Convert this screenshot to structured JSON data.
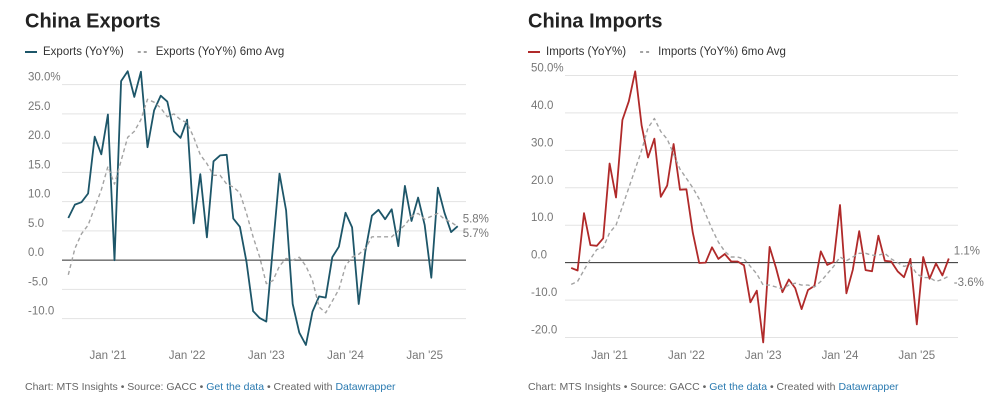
{
  "chart_data": [
    {
      "type": "line",
      "title": "China Exports",
      "categories": [
        "2020-07",
        "2020-08",
        "2020-09",
        "2020-10",
        "2020-11",
        "2020-12",
        "2021-01",
        "2021-02",
        "2021-03",
        "2021-04",
        "2021-05",
        "2021-06",
        "2021-07",
        "2021-08",
        "2021-09",
        "2021-10",
        "2021-11",
        "2021-12",
        "2022-01",
        "2022-02",
        "2022-03",
        "2022-04",
        "2022-05",
        "2022-06",
        "2022-07",
        "2022-08",
        "2022-09",
        "2022-10",
        "2022-11",
        "2022-12",
        "2023-01",
        "2023-02",
        "2023-03",
        "2023-04",
        "2023-05",
        "2023-06",
        "2023-07",
        "2023-08",
        "2023-09",
        "2023-10",
        "2023-11",
        "2023-12",
        "2024-01",
        "2024-02",
        "2024-03",
        "2024-04",
        "2024-05",
        "2024-06",
        "2024-07",
        "2024-08",
        "2024-09",
        "2024-10",
        "2024-11",
        "2024-12",
        "2025-01",
        "2025-02",
        "2025-03",
        "2025-04",
        "2025-05",
        "2025-06"
      ],
      "series": [
        {
          "name": "Exports (YoY%)",
          "color": "#1d5669",
          "style": "solid",
          "values": [
            7.2,
            9.5,
            9.9,
            11.4,
            21.1,
            18.1,
            24.9,
            0.0,
            30.6,
            32.3,
            27.9,
            32.2,
            19.3,
            25.6,
            28.1,
            27.1,
            22.0,
            20.9,
            24.0,
            6.3,
            14.7,
            3.9,
            16.9,
            17.9,
            18.0,
            7.1,
            5.7,
            -0.3,
            -8.7,
            -9.9,
            -10.5,
            2.2,
            14.8,
            8.5,
            -7.5,
            -12.4,
            -14.5,
            -8.8,
            -6.2,
            -6.4,
            0.5,
            2.3,
            8.1,
            5.6,
            -7.5,
            1.5,
            7.6,
            8.6,
            7.0,
            8.7,
            2.4,
            12.7,
            6.7,
            10.7,
            6.0,
            -3.0,
            12.4,
            8.1,
            4.8,
            5.8
          ],
          "value_labels": [
            null,
            null,
            null,
            null,
            null,
            null,
            null,
            null,
            null,
            null,
            null,
            null,
            null,
            null,
            null,
            null,
            null,
            null,
            null,
            null,
            null,
            null,
            null,
            null,
            null,
            null,
            null,
            null,
            null,
            null,
            null,
            null,
            null,
            null,
            null,
            null,
            null,
            null,
            null,
            null,
            null,
            null,
            null,
            null,
            null,
            null,
            null,
            null,
            null,
            null,
            null,
            null,
            null,
            null,
            null,
            null,
            null,
            null,
            null,
            "5.8%"
          ]
        },
        {
          "name": "Exports (YoY%) 6mo Avg",
          "color": "#a3a3a3",
          "style": "dashed",
          "values": [
            -2.5,
            2,
            4.5,
            6,
            9,
            12,
            16,
            13,
            17,
            21,
            22,
            24,
            27.5,
            27,
            26,
            24.5,
            25,
            24,
            23.5,
            21,
            18,
            16.5,
            14.5,
            14.5,
            13,
            12.5,
            11.5,
            8,
            4,
            0.5,
            -4,
            -3.5,
            -1,
            0.3,
            0,
            0.5,
            -1,
            -3.5,
            -8,
            -9,
            -7,
            -5,
            -1,
            0.5,
            1,
            2,
            4,
            4,
            4,
            4,
            5,
            6,
            7.5,
            8,
            7,
            7.5,
            8,
            7,
            6.5,
            5.7
          ],
          "value_labels": [
            null,
            null,
            null,
            null,
            null,
            null,
            null,
            null,
            null,
            null,
            null,
            null,
            null,
            null,
            null,
            null,
            null,
            null,
            null,
            null,
            null,
            null,
            null,
            null,
            null,
            null,
            null,
            null,
            null,
            null,
            null,
            null,
            null,
            null,
            null,
            null,
            null,
            null,
            null,
            null,
            null,
            null,
            null,
            null,
            null,
            null,
            null,
            null,
            null,
            null,
            null,
            null,
            null,
            null,
            null,
            null,
            null,
            null,
            null,
            "5.7%"
          ]
        }
      ],
      "xticks": [
        {
          "value": "2021-01",
          "label": "Jan '21"
        },
        {
          "value": "2022-01",
          "label": "Jan '22"
        },
        {
          "value": "2023-01",
          "label": "Jan '23"
        },
        {
          "value": "2024-01",
          "label": "Jan '24"
        },
        {
          "value": "2025-01",
          "label": "Jan '25"
        }
      ],
      "ylim": [
        -14.5,
        32.5
      ],
      "yticks": [
        {
          "value": -10,
          "label": "-10.0"
        },
        {
          "value": -5,
          "label": "-5.0"
        },
        {
          "value": 0,
          "label": "0.0"
        },
        {
          "value": 5,
          "label": "5.0"
        },
        {
          "value": 10,
          "label": "10.0"
        },
        {
          "value": 15,
          "label": "15.0"
        },
        {
          "value": 20,
          "label": "20.0"
        },
        {
          "value": 25,
          "label": "25.0"
        },
        {
          "value": 30,
          "label": "30.0%"
        }
      ],
      "grid": true,
      "source": "Chart: MTS Insights • Source: GACC •",
      "data_link": "Get the data",
      "credit": "• Created with",
      "credit_link": "Datawrapper"
    },
    {
      "type": "line",
      "title": "China Imports",
      "categories": [
        "2020-07",
        "2020-08",
        "2020-09",
        "2020-10",
        "2020-11",
        "2020-12",
        "2021-01",
        "2021-02",
        "2021-03",
        "2021-04",
        "2021-05",
        "2021-06",
        "2021-07",
        "2021-08",
        "2021-09",
        "2021-10",
        "2021-11",
        "2021-12",
        "2022-01",
        "2022-02",
        "2022-03",
        "2022-04",
        "2022-05",
        "2022-06",
        "2022-07",
        "2022-08",
        "2022-09",
        "2022-10",
        "2022-11",
        "2022-12",
        "2023-01",
        "2023-02",
        "2023-03",
        "2023-04",
        "2023-05",
        "2023-06",
        "2023-07",
        "2023-08",
        "2023-09",
        "2023-10",
        "2023-11",
        "2023-12",
        "2024-01",
        "2024-02",
        "2024-03",
        "2024-04",
        "2024-05",
        "2024-06",
        "2024-07",
        "2024-08",
        "2024-09",
        "2024-10",
        "2024-11",
        "2024-12",
        "2025-01",
        "2025-02",
        "2025-03",
        "2025-04",
        "2025-05",
        "2025-06"
      ],
      "series": [
        {
          "name": "Imports (YoY%)",
          "color": "#b02a2a",
          "style": "solid",
          "values": [
            -1.4,
            -2.1,
            13.2,
            4.7,
            4.5,
            6.5,
            26.5,
            17.4,
            38.1,
            43.1,
            51.1,
            36.7,
            28.1,
            33.1,
            17.6,
            20.6,
            31.7,
            19.5,
            19.6,
            8,
            -0.1,
            0.0,
            4.1,
            1.0,
            2.3,
            0.3,
            0.3,
            -0.7,
            -10.6,
            -7.5,
            -21.3,
            4.2,
            -1.4,
            -7.9,
            -4.5,
            -6.8,
            -12.4,
            -7.3,
            -6.2,
            3.0,
            -0.6,
            0.2,
            15.4,
            -8.2,
            -1.9,
            8.4,
            -2.0,
            -2.3,
            7.2,
            0.5,
            0.3,
            -2.3,
            -3.9,
            1.0,
            -16.5,
            1.5,
            -4.3,
            -0.2,
            -3.4,
            1.1
          ],
          "value_labels": [
            null,
            null,
            null,
            null,
            null,
            null,
            null,
            null,
            null,
            null,
            null,
            null,
            null,
            null,
            null,
            null,
            null,
            null,
            null,
            null,
            null,
            null,
            null,
            null,
            null,
            null,
            null,
            null,
            null,
            null,
            null,
            null,
            null,
            null,
            null,
            null,
            null,
            null,
            null,
            null,
            null,
            null,
            null,
            null,
            null,
            null,
            null,
            null,
            null,
            null,
            null,
            null,
            null,
            null,
            null,
            null,
            null,
            null,
            null,
            "1.1%"
          ]
        },
        {
          "name": "Imports (YoY%) 6mo Avg",
          "color": "#a3a3a3",
          "style": "dashed",
          "values": [
            -5.8,
            -5,
            -2,
            1,
            3.5,
            4,
            8,
            10,
            15,
            20,
            25,
            30,
            36,
            38.5,
            35,
            33,
            29,
            25,
            22.5,
            20,
            17,
            13,
            9,
            5.5,
            3,
            1.5,
            1.5,
            1,
            -1,
            -3,
            -6,
            -6,
            -6.5,
            -7,
            -6,
            -5.5,
            -6,
            -6,
            -6.5,
            -5,
            -3,
            -1,
            1.5,
            0.5,
            1.5,
            2.5,
            2.5,
            2,
            2,
            2.5,
            1,
            0,
            -1,
            -0.5,
            -3,
            -4,
            -4,
            -5,
            -4.5,
            -3.6
          ],
          "value_labels": [
            null,
            null,
            null,
            null,
            null,
            null,
            null,
            null,
            null,
            null,
            null,
            null,
            null,
            null,
            null,
            null,
            null,
            null,
            null,
            null,
            null,
            null,
            null,
            null,
            null,
            null,
            null,
            null,
            null,
            null,
            null,
            null,
            null,
            null,
            null,
            null,
            null,
            null,
            null,
            null,
            null,
            null,
            null,
            null,
            null,
            null,
            null,
            null,
            null,
            null,
            null,
            null,
            null,
            null,
            null,
            null,
            null,
            null,
            null,
            "-3.6%"
          ]
        }
      ],
      "xticks": [
        {
          "value": "2021-01",
          "label": "Jan '21"
        },
        {
          "value": "2022-01",
          "label": "Jan '22"
        },
        {
          "value": "2023-01",
          "label": "Jan '23"
        },
        {
          "value": "2024-01",
          "label": "Jan '24"
        },
        {
          "value": "2025-01",
          "label": "Jan '25"
        }
      ],
      "ylim": [
        -22,
        52
      ],
      "yticks": [
        {
          "value": -20,
          "label": "-20.0"
        },
        {
          "value": -10,
          "label": "-10.0"
        },
        {
          "value": 0,
          "label": "0.0"
        },
        {
          "value": 10,
          "label": "10.0"
        },
        {
          "value": 20,
          "label": "20.0"
        },
        {
          "value": 30,
          "label": "30.0"
        },
        {
          "value": 40,
          "label": "40.0"
        },
        {
          "value": 50,
          "label": "50.0%"
        }
      ],
      "grid": true,
      "source": "Chart: MTS Insights • Source: GACC •",
      "data_link": "Get the data",
      "credit": "• Created with",
      "credit_link": "Datawrapper"
    }
  ]
}
